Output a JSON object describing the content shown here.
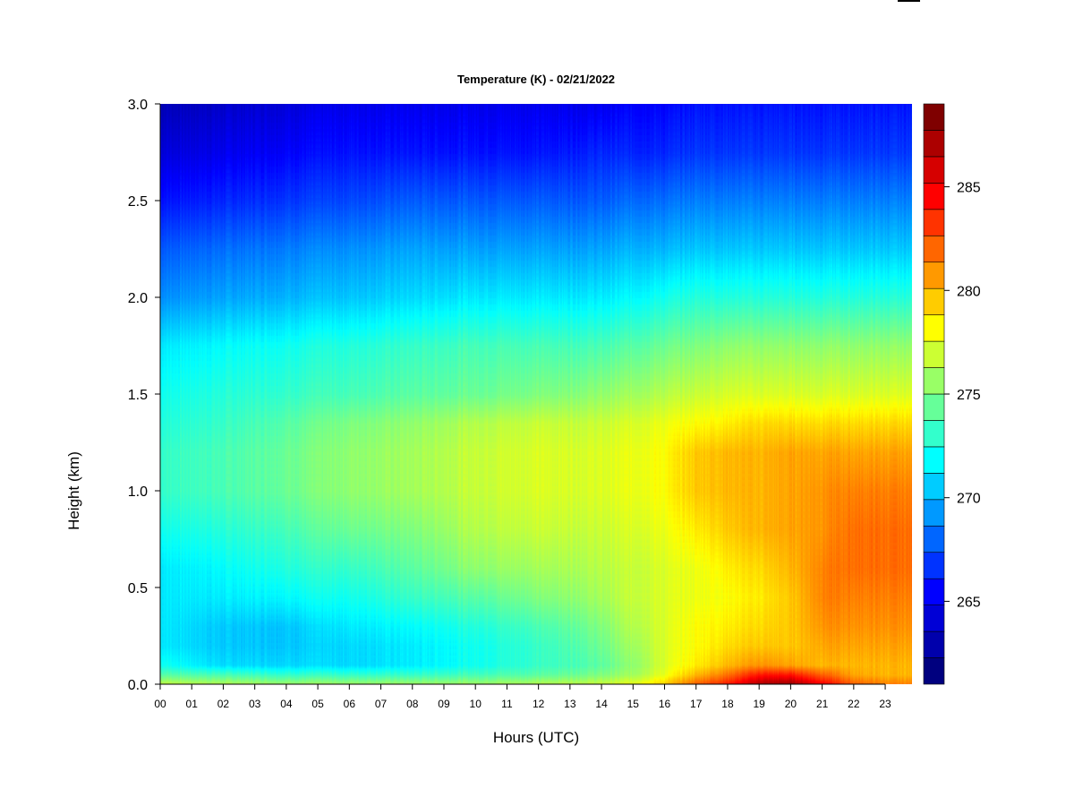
{
  "chart_data": {
    "type": "heatmap",
    "title": "Temperature (K) - 02/21/2022",
    "xlabel": "Hours (UTC)",
    "ylabel": "Height (km)",
    "x_ticks": [
      "00",
      "01",
      "02",
      "03",
      "04",
      "05",
      "06",
      "07",
      "08",
      "09",
      "10",
      "11",
      "12",
      "13",
      "14",
      "15",
      "16",
      "17",
      "18",
      "19",
      "20",
      "21",
      "22",
      "23"
    ],
    "xlim": [
      0,
      23.85
    ],
    "y_ticks": [
      "0.0",
      "0.5",
      "1.0",
      "1.5",
      "2.0",
      "2.5",
      "3.0"
    ],
    "ylim": [
      0,
      3.0
    ],
    "colorbar": {
      "range": [
        261,
        289
      ],
      "ticks": [
        "265",
        "270",
        "275",
        "280",
        "285"
      ],
      "colors": [
        "#00007f",
        "#0000ac",
        "#0000d6",
        "#0000ff",
        "#0033ff",
        "#0066ff",
        "#0099ff",
        "#00ccff",
        "#00ffff",
        "#33ffcc",
        "#66ff99",
        "#99ff66",
        "#ccff33",
        "#ffff00",
        "#ffcc00",
        "#ff9900",
        "#ff6600",
        "#ff3300",
        "#ff0000",
        "#d60000",
        "#ac0000",
        "#7f0000"
      ]
    },
    "heights_km": [
      0.0,
      0.05,
      0.1,
      0.2,
      0.3,
      0.45,
      0.6,
      0.8,
      1.0,
      1.2,
      1.35,
      1.5,
      1.75,
      2.0,
      2.25,
      2.5,
      2.75,
      3.0
    ],
    "hours": [
      0,
      2,
      4,
      6,
      8,
      10,
      12,
      14,
      15,
      16,
      17,
      18,
      19,
      20,
      21,
      22,
      23,
      23.85
    ],
    "temperature_K": [
      [
        277.0,
        276.5,
        276.0,
        276.0,
        276.0,
        276.0,
        276.5,
        277.0,
        278.0,
        280.0,
        283.0,
        285.0,
        288.0,
        288.5,
        286.0,
        283.0,
        282.0,
        282.0
      ],
      [
        274.0,
        273.5,
        273.0,
        273.0,
        273.0,
        273.5,
        274.0,
        275.0,
        276.0,
        278.0,
        280.5,
        282.5,
        285.0,
        285.0,
        283.0,
        281.0,
        280.5,
        280.5
      ],
      [
        272.0,
        270.5,
        270.5,
        270.5,
        271.0,
        272.0,
        273.0,
        274.0,
        275.5,
        277.5,
        279.0,
        280.5,
        281.5,
        281.0,
        280.5,
        280.5,
        280.5,
        280.5
      ],
      [
        271.0,
        270.0,
        270.0,
        270.5,
        271.0,
        272.0,
        273.0,
        274.5,
        276.0,
        277.5,
        278.5,
        279.5,
        280.0,
        280.0,
        281.0,
        281.0,
        281.0,
        281.0
      ],
      [
        271.0,
        270.0,
        270.0,
        271.0,
        271.5,
        272.5,
        273.5,
        275.0,
        276.5,
        277.5,
        278.5,
        279.0,
        279.5,
        280.0,
        281.5,
        281.5,
        281.5,
        281.5
      ],
      [
        271.0,
        271.0,
        271.5,
        272.0,
        273.0,
        274.0,
        275.0,
        276.0,
        277.0,
        277.5,
        278.0,
        278.5,
        279.0,
        280.0,
        282.0,
        282.0,
        282.0,
        282.0
      ],
      [
        271.0,
        271.5,
        272.5,
        273.0,
        274.0,
        275.5,
        276.0,
        276.5,
        277.0,
        277.5,
        278.0,
        279.0,
        279.5,
        280.5,
        282.0,
        282.5,
        282.5,
        282.5
      ],
      [
        272.0,
        272.5,
        273.5,
        274.5,
        275.0,
        276.5,
        277.0,
        277.0,
        277.5,
        278.0,
        279.0,
        280.0,
        280.5,
        281.0,
        281.5,
        282.5,
        282.5,
        282.5
      ],
      [
        273.0,
        273.5,
        274.5,
        275.5,
        276.0,
        277.0,
        277.5,
        277.5,
        278.0,
        278.5,
        280.0,
        280.5,
        280.5,
        281.0,
        281.5,
        282.0,
        282.0,
        282.0
      ],
      [
        273.0,
        273.5,
        274.5,
        275.5,
        276.0,
        277.0,
        277.5,
        277.5,
        278.0,
        278.5,
        280.0,
        280.5,
        280.5,
        281.0,
        281.0,
        281.0,
        281.0,
        281.0
      ],
      [
        272.5,
        273.0,
        274.0,
        275.0,
        275.5,
        276.5,
        277.0,
        277.0,
        277.5,
        278.0,
        278.5,
        279.0,
        279.5,
        279.5,
        279.5,
        279.5,
        279.5,
        279.5
      ],
      [
        272.0,
        272.5,
        273.0,
        273.5,
        274.0,
        274.5,
        275.0,
        275.5,
        276.0,
        276.5,
        277.0,
        277.5,
        277.5,
        277.5,
        277.5,
        277.5,
        277.5,
        277.5
      ],
      [
        271.0,
        271.5,
        272.0,
        272.5,
        273.0,
        273.5,
        273.5,
        273.5,
        274.0,
        274.5,
        275.0,
        275.5,
        275.5,
        275.5,
        275.5,
        275.5,
        275.5,
        275.5
      ],
      [
        268.5,
        269.0,
        269.5,
        270.0,
        270.5,
        271.0,
        271.0,
        271.0,
        271.5,
        272.0,
        272.5,
        272.5,
        272.5,
        272.5,
        272.5,
        272.5,
        272.5,
        272.5
      ],
      [
        267.0,
        267.5,
        268.0,
        268.5,
        269.0,
        269.0,
        269.0,
        269.0,
        269.5,
        269.5,
        270.0,
        270.0,
        270.0,
        270.0,
        270.0,
        270.0,
        270.0,
        270.0
      ],
      [
        265.0,
        265.5,
        266.0,
        266.5,
        267.0,
        267.0,
        267.0,
        267.0,
        267.5,
        267.5,
        268.0,
        268.0,
        268.0,
        268.0,
        268.0,
        268.0,
        268.0,
        268.0
      ],
      [
        263.5,
        264.0,
        264.5,
        265.0,
        265.0,
        265.0,
        265.0,
        265.5,
        265.5,
        265.5,
        266.0,
        266.0,
        266.0,
        266.0,
        266.0,
        266.0,
        266.0,
        266.0
      ],
      [
        262.5,
        263.0,
        263.5,
        264.0,
        264.0,
        264.0,
        264.0,
        264.0,
        264.5,
        264.5,
        265.0,
        265.0,
        265.0,
        265.0,
        265.0,
        265.0,
        265.0,
        265.0
      ]
    ]
  }
}
